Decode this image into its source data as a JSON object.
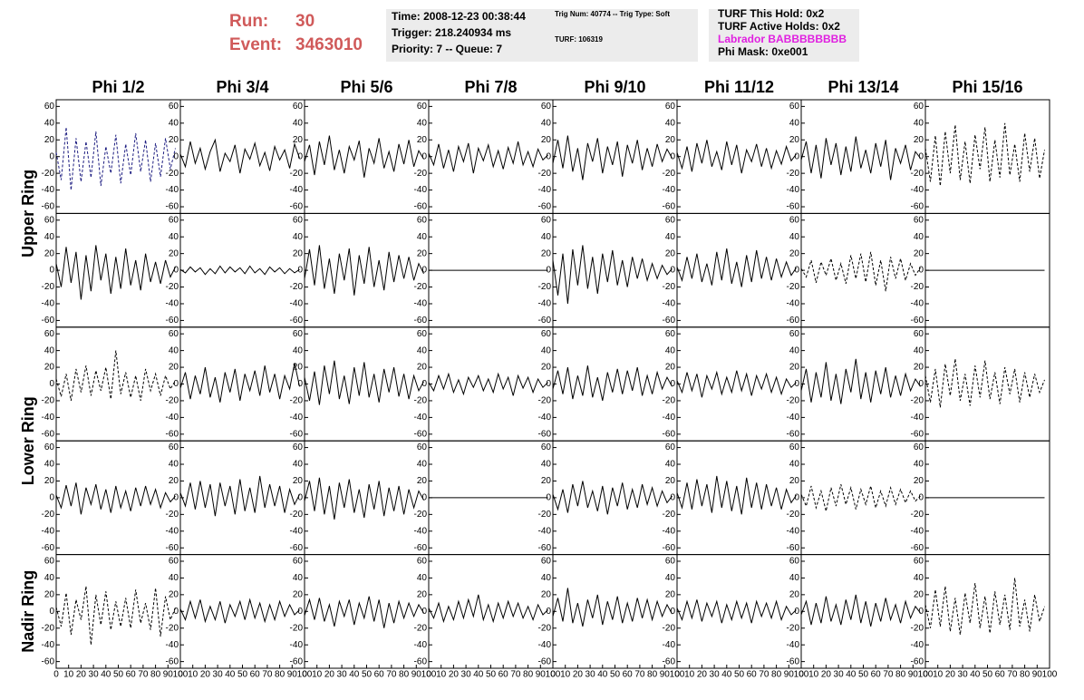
{
  "header": {
    "run_label": "Run:",
    "run": 30,
    "event_label": "Event:",
    "event": 3463010,
    "info": [
      [
        "Time: 2008-12-23 00:38:44",
        "Trigger: 218.240934 ms",
        "Priority: 7 -- Queue: 7"
      ],
      [
        "Trig Num: 40774 -- Trig Type: Soft",
        "TURF: 106319"
      ],
      [
        "TURF This Hold: 0x2",
        "TURF Active Holds: 0x2",
        "Labrador BABBBBBBBB",
        "Phi Mask: 0xe001"
      ]
    ]
  },
  "columns": [
    "Phi 1/2",
    "Phi 3/4",
    "Phi 5/6",
    "Phi 7/8",
    "Phi 9/10",
    "Phi 11/12",
    "Phi 13/14",
    "Phi 15/16"
  ],
  "row_groups": [
    {
      "label": "Upper Ring",
      "rows": 2
    },
    {
      "label": "Lower Ring",
      "rows": 2
    },
    {
      "label": "Nadir Ring",
      "rows": 1
    }
  ],
  "axis": {
    "xlim": [
      0,
      100
    ],
    "ylim": [
      -68,
      68
    ],
    "xticks": [
      0,
      10,
      20,
      30,
      40,
      50,
      60,
      70,
      80,
      90,
      100
    ],
    "yticks": [
      -60,
      -40,
      -20,
      0,
      20,
      40,
      60
    ],
    "x": [
      0,
      4,
      8,
      12,
      16,
      20,
      24,
      28,
      32,
      36,
      40,
      44,
      48,
      52,
      56,
      60,
      64,
      68,
      72,
      76,
      80,
      84,
      88,
      92,
      96
    ]
  },
  "panels": [
    [
      {
        "style": "dashed",
        "color": "#1c1c80",
        "values": [
          5,
          -28,
          35,
          -40,
          22,
          -30,
          18,
          -25,
          30,
          -35,
          12,
          -20,
          26,
          -32,
          15,
          -22,
          28,
          -18,
          20,
          -30,
          16,
          -24,
          22,
          -15,
          10
        ]
      },
      {
        "style": "solid",
        "color": "#000000",
        "values": [
          3,
          -12,
          18,
          -8,
          10,
          -15,
          6,
          20,
          -18,
          4,
          -6,
          14,
          -20,
          9,
          -3,
          16,
          -11,
          5,
          -17,
          12,
          -4,
          8,
          -14,
          15,
          -2
        ]
      },
      {
        "style": "solid",
        "color": "#000000",
        "values": [
          -6,
          14,
          -22,
          18,
          -10,
          25,
          -16,
          8,
          -20,
          12,
          -4,
          19,
          -25,
          10,
          -8,
          22,
          -14,
          6,
          -18,
          15,
          -9,
          20,
          -12,
          7,
          -3
        ]
      },
      {
        "style": "solid",
        "color": "#000000",
        "values": [
          4,
          -10,
          15,
          -14,
          8,
          -18,
          12,
          -6,
          16,
          -20,
          10,
          -5,
          14,
          -12,
          7,
          -15,
          11,
          -8,
          18,
          -10,
          6,
          -12,
          9,
          -4,
          2
        ]
      },
      {
        "style": "solid",
        "color": "#000000",
        "values": [
          -8,
          20,
          -14,
          25,
          -18,
          10,
          -28,
          16,
          -6,
          22,
          -20,
          12,
          -10,
          18,
          -24,
          14,
          -8,
          20,
          -16,
          10,
          -12,
          15,
          -6,
          9,
          -2
        ]
      },
      {
        "style": "solid",
        "color": "#000000",
        "values": [
          5,
          -14,
          12,
          -18,
          16,
          -8,
          20,
          -12,
          6,
          -16,
          18,
          -10,
          14,
          -20,
          8,
          -6,
          15,
          -12,
          10,
          -14,
          7,
          -9,
          12,
          -5,
          3
        ]
      },
      {
        "style": "solid",
        "color": "#000000",
        "values": [
          -4,
          18,
          -20,
          14,
          -26,
          22,
          -10,
          16,
          -22,
          12,
          -18,
          24,
          -14,
          8,
          -20,
          16,
          -12,
          20,
          -28,
          10,
          -8,
          14,
          -16,
          6,
          -2
        ]
      },
      {
        "style": "dashed",
        "color": "#000000",
        "values": [
          10,
          -30,
          25,
          -35,
          30,
          -20,
          38,
          -28,
          18,
          -32,
          26,
          -15,
          35,
          -30,
          20,
          -25,
          40,
          -22,
          15,
          -30,
          28,
          -18,
          22,
          -26,
          8
        ]
      }
    ],
    [
      {
        "style": "solid",
        "color": "#000000",
        "values": [
          8,
          -20,
          28,
          -15,
          22,
          -35,
          18,
          -25,
          30,
          -12,
          20,
          -28,
          16,
          -22,
          26,
          -18,
          12,
          -24,
          20,
          -14,
          10,
          -16,
          12,
          -8,
          4
        ]
      },
      {
        "style": "solid",
        "color": "#000000",
        "values": [
          1,
          -3,
          4,
          -2,
          3,
          -5,
          2,
          -4,
          5,
          -3,
          4,
          -2,
          3,
          -4,
          5,
          -3,
          2,
          -5,
          4,
          -2,
          3,
          -4,
          2,
          -3,
          1
        ]
      },
      {
        "style": "solid",
        "color": "#000000",
        "values": [
          -10,
          25,
          -18,
          30,
          -22,
          14,
          -28,
          20,
          -12,
          26,
          -30,
          18,
          -16,
          28,
          -20,
          12,
          -24,
          22,
          -14,
          18,
          -10,
          16,
          -12,
          8,
          -4
        ]
      },
      {
        "style": "solid",
        "color": "#000000",
        "values": [
          0,
          0,
          0,
          0,
          0,
          0,
          0,
          0,
          0,
          0,
          0,
          0,
          0,
          0,
          0,
          0,
          0,
          0,
          0,
          0,
          0,
          0,
          0,
          0,
          0
        ]
      },
      {
        "style": "solid",
        "color": "#000000",
        "values": [
          12,
          -30,
          20,
          -40,
          25,
          -18,
          30,
          -22,
          16,
          -28,
          20,
          -14,
          24,
          -18,
          12,
          -20,
          16,
          -10,
          14,
          -12,
          8,
          -10,
          6,
          -5,
          2
        ]
      },
      {
        "style": "solid",
        "color": "#000000",
        "values": [
          4,
          -12,
          16,
          -10,
          20,
          -14,
          8,
          -18,
          22,
          -12,
          26,
          -16,
          10,
          -20,
          18,
          -14,
          24,
          -10,
          16,
          -12,
          14,
          -8,
          10,
          -6,
          3
        ]
      },
      {
        "style": "dashed",
        "color": "#000000",
        "values": [
          2,
          -8,
          12,
          -15,
          10,
          -6,
          14,
          -12,
          8,
          -16,
          18,
          -10,
          20,
          -14,
          22,
          -18,
          12,
          -25,
          16,
          -10,
          14,
          -12,
          8,
          -6,
          3
        ]
      },
      {
        "style": "solid",
        "color": "#000000",
        "values": [
          0,
          0,
          0,
          0,
          0,
          0,
          0,
          0,
          0,
          0,
          0,
          0,
          0,
          0,
          0,
          0,
          0,
          0,
          0,
          0,
          0,
          0,
          0,
          0,
          0
        ]
      }
    ],
    [
      {
        "style": "dashed",
        "color": "#000000",
        "values": [
          6,
          -15,
          12,
          -20,
          18,
          -10,
          22,
          -14,
          16,
          -8,
          20,
          -18,
          40,
          -12,
          14,
          -16,
          10,
          -20,
          18,
          -8,
          12,
          -14,
          10,
          -6,
          4
        ]
      },
      {
        "style": "solid",
        "color": "#000000",
        "values": [
          -5,
          14,
          -18,
          10,
          -12,
          20,
          -16,
          8,
          -22,
          14,
          -10,
          18,
          -20,
          12,
          -8,
          16,
          -14,
          22,
          -10,
          12,
          -18,
          10,
          -6,
          25,
          -3
        ]
      },
      {
        "style": "solid",
        "color": "#000000",
        "values": [
          8,
          -20,
          15,
          -25,
          22,
          -12,
          28,
          -18,
          10,
          -24,
          20,
          -14,
          26,
          -16,
          12,
          -22,
          18,
          -10,
          20,
          -15,
          12,
          -18,
          10,
          -8,
          3
        ]
      },
      {
        "style": "solid",
        "color": "#000000",
        "values": [
          2,
          -8,
          10,
          -6,
          12,
          -10,
          5,
          -12,
          8,
          -4,
          10,
          -8,
          6,
          -10,
          12,
          -6,
          8,
          -14,
          10,
          -5,
          8,
          -10,
          6,
          -4,
          2
        ]
      },
      {
        "style": "solid",
        "color": "#000000",
        "values": [
          -6,
          16,
          -12,
          20,
          -18,
          10,
          -14,
          22,
          -16,
          8,
          -20,
          14,
          -10,
          18,
          -12,
          16,
          -8,
          20,
          -14,
          10,
          -12,
          14,
          -6,
          8,
          -3
        ]
      },
      {
        "style": "solid",
        "color": "#000000",
        "values": [
          4,
          -10,
          14,
          -8,
          12,
          -16,
          10,
          -6,
          14,
          -12,
          8,
          -10,
          16,
          -8,
          12,
          -14,
          10,
          -6,
          12,
          -10,
          8,
          -12,
          6,
          -4,
          2
        ]
      },
      {
        "style": "solid",
        "color": "#000000",
        "values": [
          -8,
          18,
          -22,
          14,
          -16,
          26,
          -20,
          12,
          -24,
          18,
          -10,
          30,
          -18,
          14,
          -22,
          16,
          -12,
          20,
          -16,
          10,
          -14,
          12,
          -8,
          6,
          -3
        ]
      },
      {
        "style": "dashed",
        "color": "#000000",
        "values": [
          10,
          -22,
          18,
          -28,
          24,
          -14,
          30,
          -20,
          12,
          -26,
          22,
          -16,
          28,
          -18,
          14,
          -24,
          20,
          -12,
          18,
          -22,
          14,
          -16,
          12,
          -10,
          5
        ]
      }
    ],
    [
      {
        "style": "solid",
        "color": "#000000",
        "values": [
          3,
          -12,
          15,
          -10,
          18,
          -20,
          12,
          -8,
          16,
          -14,
          10,
          -18,
          14,
          -12,
          8,
          -16,
          12,
          -10,
          14,
          -8,
          10,
          -12,
          6,
          -5,
          2
        ]
      },
      {
        "style": "solid",
        "color": "#000000",
        "values": [
          6,
          -10,
          18,
          -14,
          20,
          -12,
          16,
          -22,
          18,
          -10,
          14,
          -20,
          22,
          -16,
          12,
          -18,
          26,
          -12,
          16,
          -10,
          14,
          -18,
          10,
          -8,
          4
        ]
      },
      {
        "style": "solid",
        "color": "#000000",
        "values": [
          -4,
          20,
          -16,
          24,
          -20,
          14,
          -26,
          18,
          -12,
          22,
          -18,
          10,
          -24,
          16,
          -14,
          20,
          -22,
          12,
          -16,
          14,
          -20,
          10,
          -12,
          8,
          -3
        ]
      },
      {
        "style": "solid",
        "color": "#000000",
        "values": [
          0,
          0,
          0,
          0,
          0,
          0,
          0,
          0,
          0,
          0,
          0,
          0,
          0,
          0,
          0,
          0,
          0,
          0,
          0,
          0,
          0,
          0,
          0,
          0,
          0
        ]
      },
      {
        "style": "solid",
        "color": "#000000",
        "values": [
          4,
          -14,
          10,
          -18,
          16,
          -10,
          20,
          -12,
          8,
          -16,
          14,
          -20,
          12,
          -10,
          18,
          -14,
          10,
          -12,
          16,
          -8,
          12,
          -10,
          8,
          -6,
          2
        ]
      },
      {
        "style": "solid",
        "color": "#000000",
        "values": [
          6,
          -12,
          18,
          -14,
          22,
          -10,
          16,
          -18,
          26,
          -12,
          20,
          -16,
          14,
          -20,
          24,
          -12,
          18,
          -14,
          16,
          -10,
          12,
          -14,
          10,
          -6,
          3
        ]
      },
      {
        "style": "dashed",
        "color": "#000000",
        "values": [
          4,
          -10,
          14,
          -12,
          8,
          -16,
          12,
          -10,
          16,
          -8,
          12,
          -14,
          10,
          -8,
          14,
          -12,
          8,
          -10,
          12,
          -8,
          10,
          -6,
          8,
          -4,
          2
        ]
      },
      {
        "style": "solid",
        "color": "#000000",
        "values": [
          0,
          0,
          0,
          0,
          0,
          0,
          0,
          0,
          0,
          0,
          0,
          0,
          0,
          0,
          0,
          0,
          0,
          0,
          0,
          0,
          0,
          0,
          0,
          0,
          0
        ]
      }
    ],
    [
      {
        "style": "dashed",
        "color": "#000000",
        "values": [
          5,
          -18,
          22,
          -28,
          14,
          -10,
          30,
          -40,
          20,
          -16,
          24,
          -22,
          12,
          -18,
          16,
          -20,
          26,
          -14,
          10,
          -22,
          28,
          -30,
          18,
          -10,
          4
        ]
      },
      {
        "style": "solid",
        "color": "#000000",
        "values": [
          3,
          -10,
          12,
          -8,
          14,
          -12,
          6,
          -10,
          12,
          -14,
          8,
          -6,
          12,
          -10,
          14,
          -8,
          10,
          -12,
          8,
          -10,
          12,
          -6,
          8,
          -4,
          2
        ]
      },
      {
        "style": "solid",
        "color": "#000000",
        "values": [
          -5,
          14,
          -10,
          16,
          -12,
          8,
          -18,
          12,
          -6,
          14,
          -16,
          10,
          -8,
          18,
          -12,
          14,
          -20,
          10,
          -14,
          12,
          -8,
          10,
          -6,
          8,
          -2
        ]
      },
      {
        "style": "solid",
        "color": "#000000",
        "values": [
          4,
          -8,
          10,
          -12,
          6,
          -10,
          12,
          -8,
          14,
          -6,
          20,
          -10,
          8,
          -12,
          10,
          -8,
          12,
          -6,
          10,
          -8,
          6,
          -10,
          8,
          -4,
          2
        ]
      },
      {
        "style": "solid",
        "color": "#000000",
        "values": [
          -6,
          16,
          -12,
          28,
          -14,
          10,
          -18,
          14,
          -8,
          20,
          -16,
          12,
          -10,
          18,
          -14,
          10,
          -12,
          16,
          -8,
          14,
          -10,
          12,
          -6,
          8,
          -3
        ]
      },
      {
        "style": "solid",
        "color": "#000000",
        "values": [
          4,
          -10,
          12,
          -8,
          14,
          -12,
          10,
          -6,
          12,
          -14,
          8,
          -10,
          12,
          -8,
          10,
          -14,
          12,
          -6,
          10,
          -8,
          12,
          -10,
          6,
          -4,
          2
        ]
      },
      {
        "style": "solid",
        "color": "#000000",
        "values": [
          -4,
          12,
          -16,
          10,
          -14,
          18,
          -12,
          8,
          -16,
          14,
          -10,
          20,
          -14,
          12,
          -18,
          10,
          -12,
          16,
          -10,
          8,
          -14,
          12,
          -8,
          6,
          -2
        ]
      },
      {
        "style": "dashed",
        "color": "#000000",
        "values": [
          8,
          -20,
          26,
          -18,
          30,
          -24,
          16,
          -28,
          22,
          -14,
          34,
          -20,
          18,
          -26,
          24,
          -16,
          20,
          -22,
          40,
          -18,
          14,
          -24,
          20,
          -12,
          6
        ]
      }
    ]
  ]
}
